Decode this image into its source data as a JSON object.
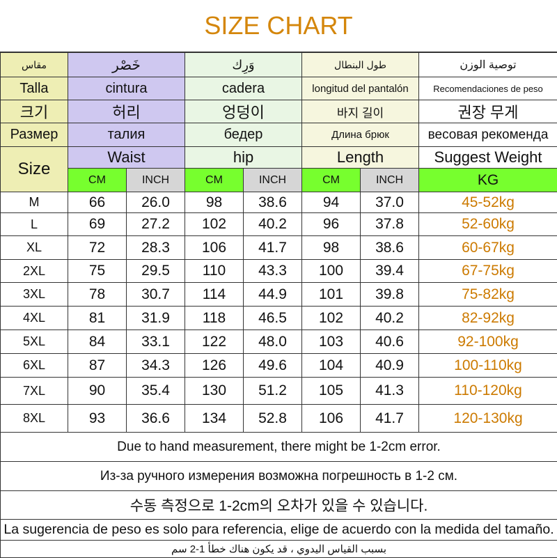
{
  "title": "SIZE CHART",
  "header_rows": [
    {
      "size": "مقاس",
      "waist": "خَصْر",
      "hip": "وَرِك",
      "length": "طول البنطال",
      "weight": "توصية الوزن"
    },
    {
      "size": "Talla",
      "waist": "cintura",
      "hip": "cadera",
      "length": "longitud del pantalón",
      "weight": "Recomendaciones de peso"
    },
    {
      "size": "크기",
      "waist": "허리",
      "hip": "엉덩이",
      "length": "바지 길이",
      "weight": "권장 무게"
    },
    {
      "size": "Размер",
      "waist": "талия",
      "hip": "бедер",
      "length": "Длина брюк",
      "weight": "весовая рекоменда"
    },
    {
      "size": "Size",
      "waist": "Waist",
      "hip": "hip",
      "length": "Length",
      "weight": "Suggest Weight"
    }
  ],
  "units": {
    "cm": "CM",
    "inch": "INCH",
    "kg": "KG"
  },
  "rows": [
    {
      "size": "M",
      "waist_cm": "66",
      "waist_in": "26.0",
      "hip_cm": "98",
      "hip_in": "38.6",
      "len_cm": "94",
      "len_in": "37.0",
      "weight": "45-52kg"
    },
    {
      "size": "L",
      "waist_cm": "69",
      "waist_in": "27.2",
      "hip_cm": "102",
      "hip_in": "40.2",
      "len_cm": "96",
      "len_in": "37.8",
      "weight": "52-60kg"
    },
    {
      "size": "XL",
      "waist_cm": "72",
      "waist_in": "28.3",
      "hip_cm": "106",
      "hip_in": "41.7",
      "len_cm": "98",
      "len_in": "38.6",
      "weight": "60-67kg"
    },
    {
      "size": "2XL",
      "waist_cm": "75",
      "waist_in": "29.5",
      "hip_cm": "110",
      "hip_in": "43.3",
      "len_cm": "100",
      "len_in": "39.4",
      "weight": "67-75kg"
    },
    {
      "size": "3XL",
      "waist_cm": "78",
      "waist_in": "30.7",
      "hip_cm": "114",
      "hip_in": "44.9",
      "len_cm": "101",
      "len_in": "39.8",
      "weight": "75-82kg"
    },
    {
      "size": "4XL",
      "waist_cm": "81",
      "waist_in": "31.9",
      "hip_cm": "118",
      "hip_in": "46.5",
      "len_cm": "102",
      "len_in": "40.2",
      "weight": "82-92kg"
    },
    {
      "size": "5XL",
      "waist_cm": "84",
      "waist_in": "33.1",
      "hip_cm": "122",
      "hip_in": "48.0",
      "len_cm": "103",
      "len_in": "40.6",
      "weight": "92-100kg"
    },
    {
      "size": "6XL",
      "waist_cm": "87",
      "waist_in": "34.3",
      "hip_cm": "126",
      "hip_in": "49.6",
      "len_cm": "104",
      "len_in": "40.9",
      "weight": "100-110kg"
    },
    {
      "size": "7XL",
      "waist_cm": "90",
      "waist_in": "35.4",
      "hip_cm": "130",
      "hip_in": "51.2",
      "len_cm": "105",
      "len_in": "41.3",
      "weight": "110-120kg"
    },
    {
      "size": "8XL",
      "waist_cm": "93",
      "waist_in": "36.6",
      "hip_cm": "134",
      "hip_in": "52.8",
      "len_cm": "106",
      "len_in": "41.7",
      "weight": "120-130kg"
    }
  ],
  "notes": [
    "Due to hand measurement, there might be 1-2cm error.",
    "Из-за ручного измерения возможна погрешность в 1-2 см.",
    "수동 측정으로 1-2cm의 오차가 있을 수 있습니다.",
    "La sugerencia de peso es solo para referencia, elige de acuerdo con la medida del tamaño.",
    "بسبب القياس اليدوي ، قد يكون هناك خطأ 1-2 سم"
  ]
}
